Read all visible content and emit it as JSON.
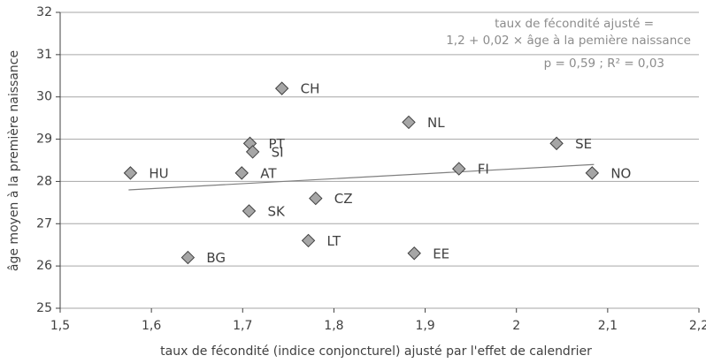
{
  "chart_data": {
    "type": "scatter",
    "xlabel": "taux de fécondité (indice conjoncturel) ajusté par l'effet de calendrier",
    "ylabel": "âge moyen à la première naissance",
    "annotations": [
      "taux de fécondité ajusté =",
      "1,2 + 0,02 × âge à la pemière naissance",
      "p = 0,59 ;  R² = 0,03"
    ],
    "point_labels": [
      "HU",
      "CH",
      "PT",
      "SI",
      "AT",
      "SK",
      "CZ",
      "LT",
      "BG",
      "NL",
      "FI",
      "EE",
      "SE",
      "NO"
    ],
    "x": [
      1.577,
      1.743,
      1.708,
      1.711,
      1.699,
      1.707,
      1.78,
      1.772,
      1.64,
      1.882,
      1.937,
      1.888,
      2.044,
      2.083
    ],
    "values": [
      28.2,
      30.2,
      28.9,
      28.7,
      28.2,
      27.3,
      27.6,
      26.6,
      26.2,
      29.4,
      28.3,
      26.3,
      28.9,
      28.2
    ],
    "color": "#a6a6a6",
    "trendline": {
      "x": [
        1.575,
        2.085
      ],
      "values": [
        27.8,
        28.4
      ],
      "color": "#7f7f7f"
    },
    "xlim": [
      1.5,
      2.2
    ],
    "xticks": [
      {
        "value": 1.5,
        "label": "1,5"
      },
      {
        "value": 1.6,
        "label": "1,6"
      },
      {
        "value": 1.7,
        "label": "1,7"
      },
      {
        "value": 1.8,
        "label": "1,8"
      },
      {
        "value": 1.9,
        "label": "1,9"
      },
      2,
      {
        "value": 2.1,
        "label": "2,1"
      },
      {
        "value": 2.2,
        "label": "2,2"
      }
    ],
    "ylim": [
      25,
      32
    ],
    "yticks": [
      25,
      26,
      27,
      28,
      29,
      30,
      31,
      32
    ],
    "grid": true
  }
}
